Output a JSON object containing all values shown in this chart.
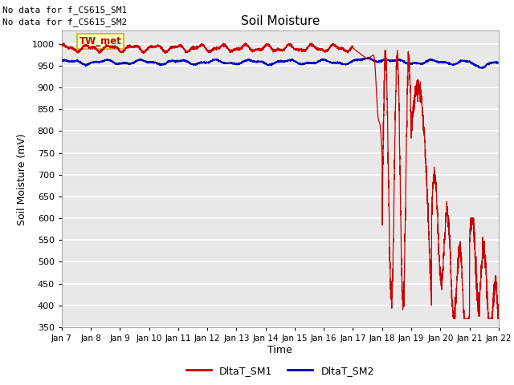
{
  "title": "Soil Moisture",
  "ylabel": "Soil Moisture (mV)",
  "xlabel": "Time",
  "annotation_line1": "No data for f_CS615_SM1",
  "annotation_line2": "No data for f_CS615_SM2",
  "box_label": "TW_met",
  "ylim": [
    350,
    1030
  ],
  "yticks": [
    350,
    400,
    450,
    500,
    550,
    600,
    650,
    700,
    750,
    800,
    850,
    900,
    950,
    1000
  ],
  "xtick_labels": [
    "Jan 7",
    "Jan 8",
    "Jan 9",
    "Jan 10",
    "Jan 11",
    "Jan 12",
    "Jan 13",
    "Jan 14",
    "Jan 15",
    "Jan 16",
    "Jan 17",
    "Jan 18",
    "Jan 19",
    "Jan 20",
    "Jan 21",
    "Jan 22"
  ],
  "sm1_color": "#cc0000",
  "sm2_color": "#0000bb",
  "bg_color": "#e8e8e8",
  "grid_color": "#ffffff",
  "legend_sm1": "DltaT_SM1",
  "legend_sm2": "DltaT_SM2"
}
